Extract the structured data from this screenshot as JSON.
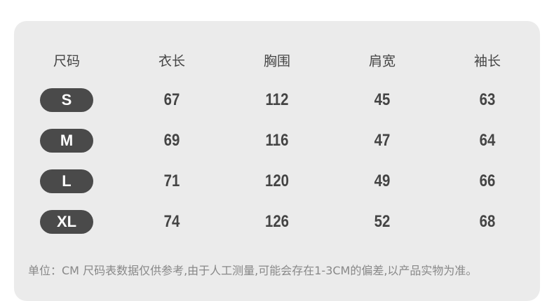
{
  "table": {
    "header": [
      "尺码",
      "衣长",
      "胸围",
      "肩宽",
      "袖长"
    ],
    "rows": [
      [
        "S",
        67,
        112,
        45,
        63
      ],
      [
        "M",
        69,
        116,
        47,
        64
      ],
      [
        "L",
        71,
        120,
        49,
        66
      ],
      [
        "XL",
        74,
        126,
        52,
        68
      ]
    ],
    "note": "单位：CM 尺码表数据仅供参考,由于人工测量,可能会存在1-3CM的偏差,以产品实物为准。"
  }
}
